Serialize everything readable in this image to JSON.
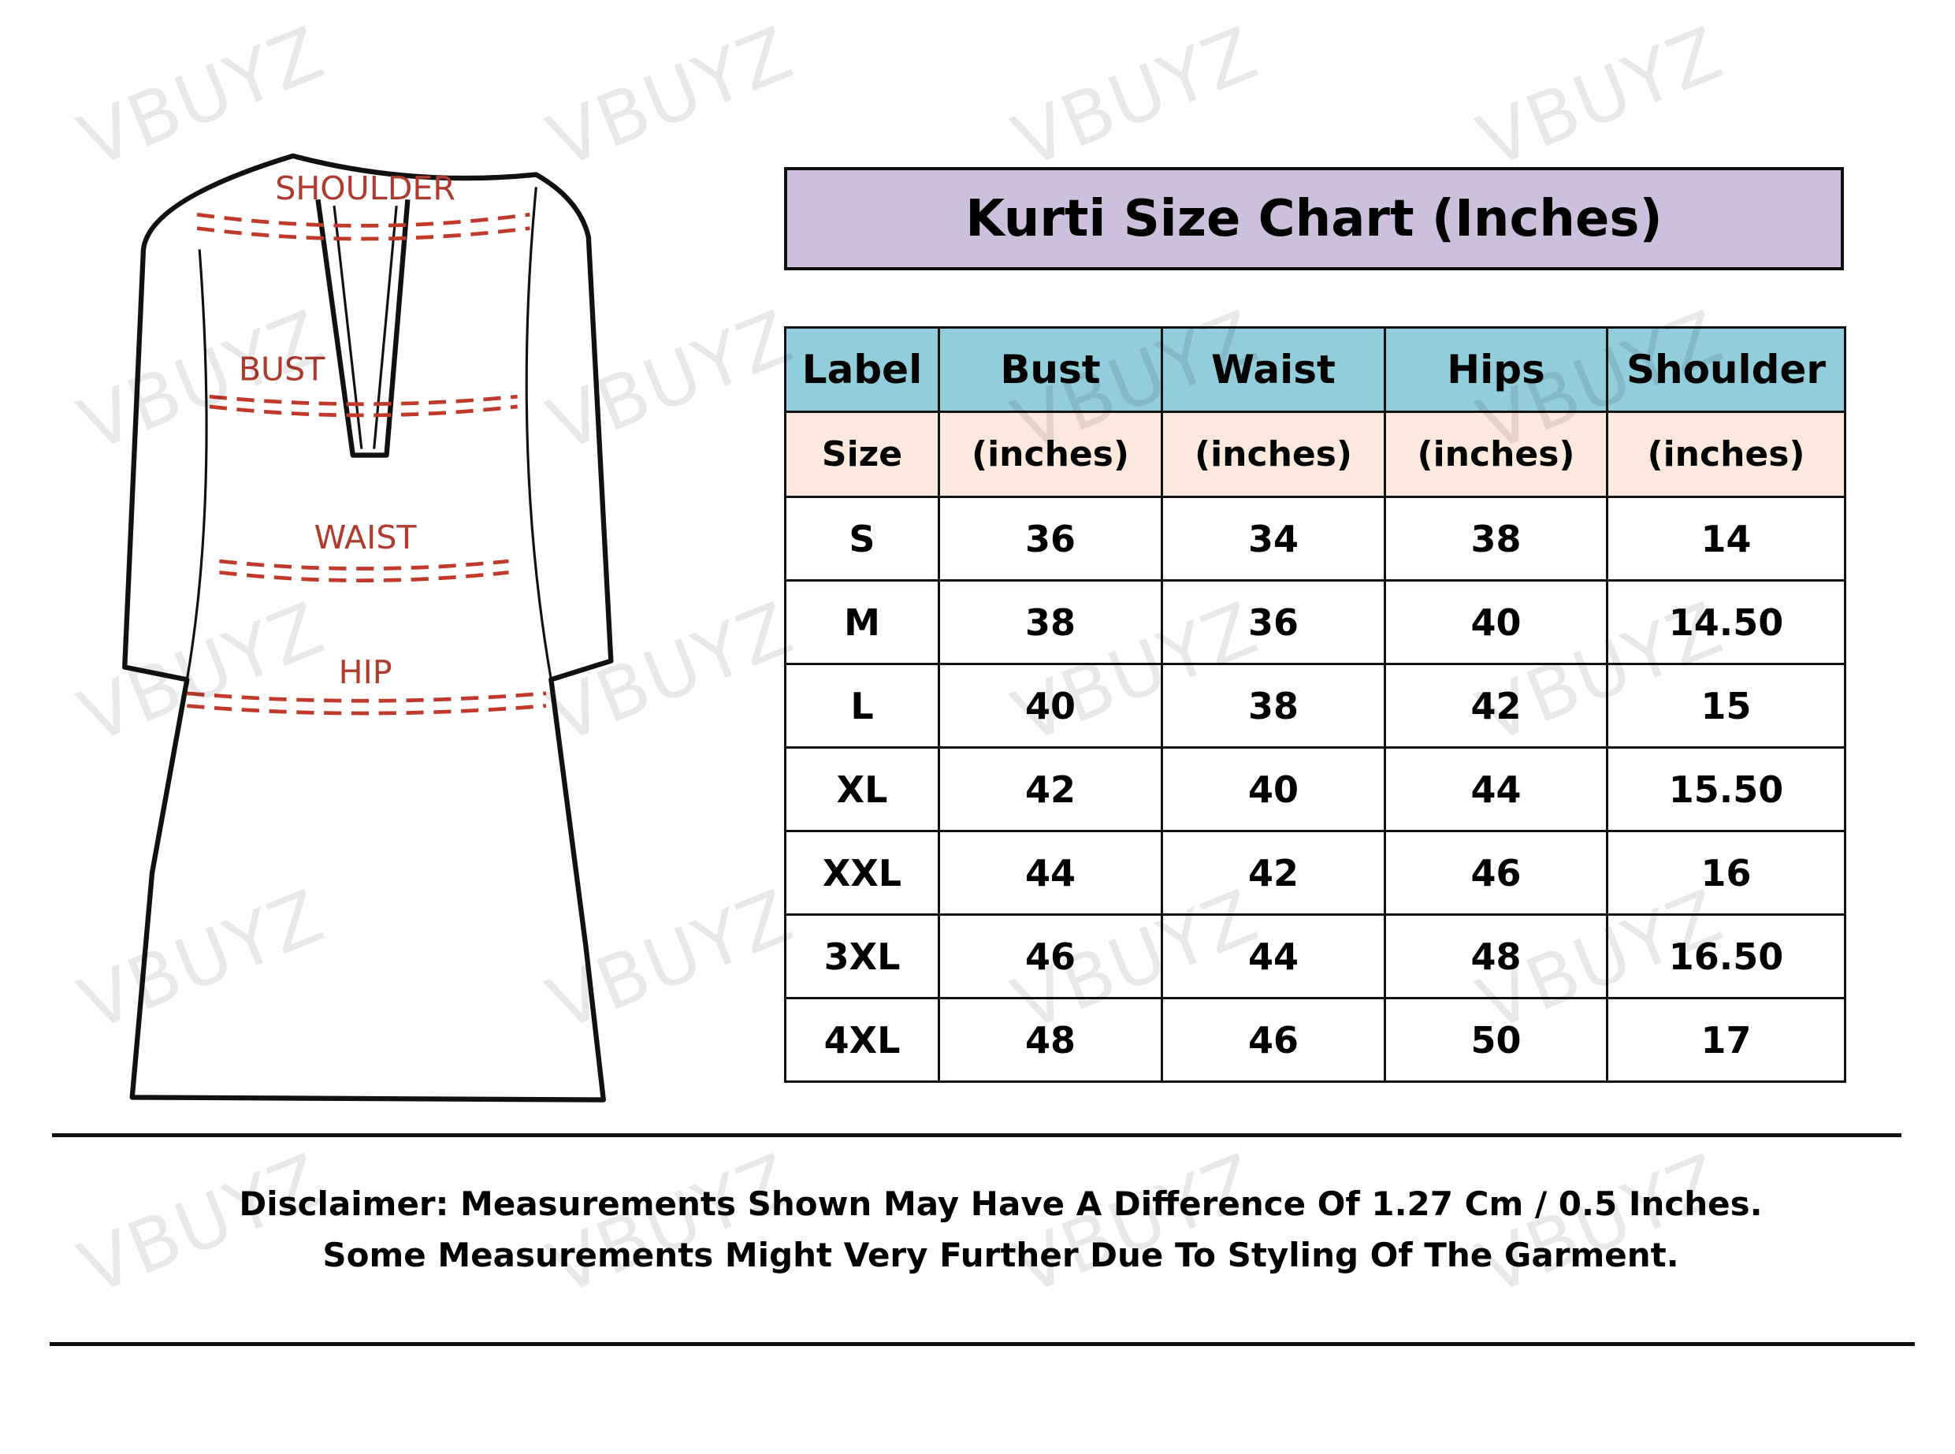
{
  "watermark": "VBUYZ",
  "diagram": {
    "labels": {
      "shoulder": "SHOULDER",
      "bust": "BUST",
      "waist": "WAIST",
      "hip": "HIP"
    }
  },
  "title": "Kurti Size Chart (Inches)",
  "table": {
    "header": [
      "Label",
      "Bust",
      "Waist",
      "Hips",
      "Shoulder"
    ],
    "subheader": [
      "Size",
      "(inches)",
      "(inches)",
      "(inches)",
      "(inches)"
    ],
    "rows": [
      [
        "S",
        "36",
        "34",
        "38",
        "14"
      ],
      [
        "M",
        "38",
        "36",
        "40",
        "14.50"
      ],
      [
        "L",
        "40",
        "38",
        "42",
        "15"
      ],
      [
        "XL",
        "42",
        "40",
        "44",
        "15.50"
      ],
      [
        "XXL",
        "44",
        "42",
        "46",
        "16"
      ],
      [
        "3XL",
        "46",
        "44",
        "48",
        "16.50"
      ],
      [
        "4XL",
        "48",
        "46",
        "50",
        "17"
      ]
    ]
  },
  "disclaimer": {
    "line1": "Disclaimer: Measurements Shown May Have A Difference Of 1.27 Cm / 0.5 Inches.",
    "line2": "Some Measurements Might Very Further Due To Styling Of The Garment."
  },
  "colors": {
    "title_bg": "#cdc0dd",
    "header_bg": "#92cddc",
    "subheader_bg": "#fce8dc",
    "measure_line": "#c0392b"
  }
}
